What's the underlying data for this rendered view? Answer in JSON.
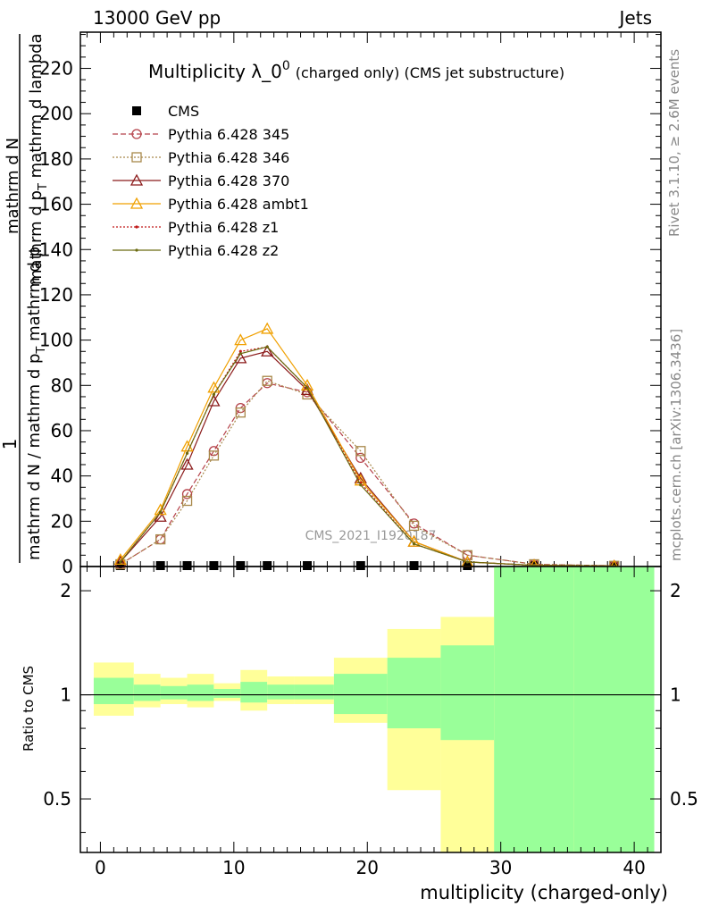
{
  "header": {
    "left": "13000 GeV pp",
    "right": "Jets"
  },
  "side_labels": {
    "rivet": "Rivet 3.1.10, ≥ 2.6M events",
    "mcplots": "mcplots.cern.ch [arXiv:1306.3436]"
  },
  "chart_data": [
    {
      "type": "line",
      "title": "Multiplicity λ_0",
      "title_sup": "0",
      "subtitle": "(charged only) (CMS jet substructure)",
      "ylabel_top": "1",
      "ylabel_num": "mathrm dN",
      "ylabel_frac_denom": "mathrm d p_T mathrm d lambda",
      "ylabel_bottom": "mathrm d N / mathrm d p_T mathrm d p_T mathrm d lambda",
      "ylabel_line1": "mathrm d N / mathrm d p",
      "ylabel_line1_sub": "T",
      "ylabel_line1_tail": " mathrm d p",
      "ylabel_line2": "mathrm d N",
      "ylabel_line2b": "mathrm d p",
      "ylabel_line2_sub": "T",
      "ylabel_line2_tail": " mathrm d lambda",
      "xlim": [
        -1.5,
        42
      ],
      "ylim": [
        0,
        236
      ],
      "yticks": [
        0,
        20,
        40,
        60,
        80,
        100,
        120,
        140,
        160,
        180,
        200,
        220
      ],
      "watermark": "CMS_2021_I1920187",
      "legend_position": "top-left",
      "x": [
        1.5,
        4.5,
        6.5,
        8.5,
        10.5,
        12.5,
        15.5,
        19.5,
        23.5,
        27.5,
        32.5,
        38.5
      ],
      "series": [
        {
          "name": "CMS",
          "color": "#000000",
          "style": "data",
          "values": [
            0.4,
            0.4,
            0.4,
            0.4,
            0.4,
            0.4,
            0.4,
            0.4,
            0.4,
            0.4,
            0.4,
            0.4
          ]
        },
        {
          "name": "Pythia 6.428 345",
          "color": "#b5424a",
          "dash": "6,3",
          "marker": "circle",
          "values": [
            1,
            12,
            32,
            51,
            70,
            81,
            77,
            48,
            19,
            5,
            1,
            0.3
          ]
        },
        {
          "name": "Pythia 6.428 346",
          "color": "#a8884a",
          "dash": "2,2",
          "marker": "square",
          "values": [
            1,
            12,
            29,
            49,
            68,
            82,
            76,
            51,
            18,
            5,
            1,
            0.3
          ]
        },
        {
          "name": "Pythia 6.428 370",
          "color": "#8b1a1a",
          "dash": "",
          "marker": "triangle",
          "values": [
            2,
            22,
            45,
            73,
            92,
            95,
            78,
            39,
            11,
            2,
            0.5,
            0.2
          ]
        },
        {
          "name": "Pythia 6.428 ambt1",
          "color": "#f0a000",
          "dash": "",
          "marker": "triangle",
          "values": [
            3,
            25,
            53,
            79,
            100,
            105,
            80,
            38,
            11,
            2,
            0.5,
            0.2
          ]
        },
        {
          "name": "Pythia 6.428 z1",
          "color": "#c01818",
          "dash": "2,2",
          "marker": "dot",
          "values": [
            2,
            24,
            50,
            76,
            95,
            97,
            79,
            37,
            10,
            2,
            0.5,
            0.2
          ]
        },
        {
          "name": "Pythia 6.428 z2",
          "color": "#6b6b10",
          "dash": "",
          "marker": "dot",
          "values": [
            2,
            24,
            50,
            76,
            94,
            97,
            79,
            36,
            10,
            2,
            0.5,
            0.2
          ]
        }
      ]
    },
    {
      "type": "area",
      "ylabel": "Ratio to CMS",
      "xlabel": "multiplicity (charged-only)",
      "xlim": [
        -1.5,
        42
      ],
      "xticks": [
        0,
        10,
        20,
        30,
        40
      ],
      "ylim": [
        0.35,
        2.35
      ],
      "yticks": [
        0.5,
        1,
        2
      ],
      "ytick_labels": [
        "0.5",
        "1",
        "2"
      ],
      "bands": {
        "edges": [
          -0.5,
          2.5,
          4.5,
          6.5,
          8.5,
          10.5,
          12.5,
          14.5,
          17.5,
          21.5,
          25.5,
          29.5,
          35.5,
          41.5
        ],
        "green_lo": [
          0.94,
          0.96,
          0.97,
          0.96,
          0.98,
          0.95,
          0.97,
          0.97,
          0.88,
          0.8,
          0.74,
          0.35,
          0.35
        ],
        "green_hi": [
          1.12,
          1.07,
          1.06,
          1.07,
          1.04,
          1.09,
          1.07,
          1.07,
          1.15,
          1.28,
          1.39,
          2.35,
          2.35
        ],
        "yellow_lo": [
          0.87,
          0.92,
          0.94,
          0.92,
          0.96,
          0.9,
          0.94,
          0.94,
          0.83,
          0.53,
          0.35,
          0.35,
          0.35
        ],
        "yellow_hi": [
          1.24,
          1.15,
          1.12,
          1.15,
          1.08,
          1.18,
          1.13,
          1.13,
          1.28,
          1.55,
          1.68,
          2.35,
          2.3
        ]
      }
    }
  ]
}
